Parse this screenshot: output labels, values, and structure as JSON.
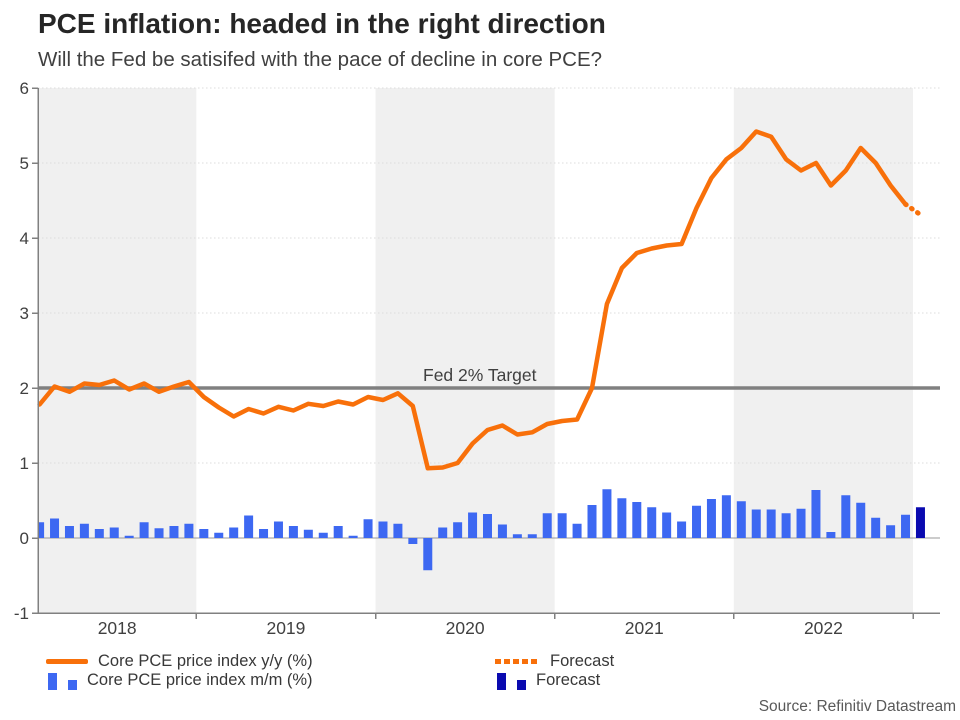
{
  "page": {
    "title": "PCE inflation: headed in the right direction",
    "subtitle": "Will the Fed be satisifed with the pace of decline in core PCE?",
    "source": "Source: Refinitiv Datastream"
  },
  "legend": {
    "yoy_label": "Core PCE price index y/y (%)",
    "mm_label": "Core PCE price index m/m (%)",
    "forecast_line_label": "Forecast",
    "forecast_bar_label": "Forecast"
  },
  "colors": {
    "yoy_line": "#F8700A",
    "mm_bar": "#3D68F2",
    "forecast_bar": "#0A0AB0",
    "target_line": "#808080",
    "band_fill": "#F0F0F0",
    "grid": "#DCDCDC",
    "zero_line": "#999999",
    "axis": "#808080",
    "tick_text": "#404040",
    "title_text": "#262626",
    "source_text": "#595959"
  },
  "chart_data": {
    "type": "line+bar",
    "title": "PCE inflation: headed in the right direction",
    "subtitle": "Will the Fed be satisifed with the pace of decline in core PCE?",
    "ylim": [
      -1,
      6
    ],
    "yticks": [
      6,
      5,
      4,
      3,
      2,
      1,
      0,
      -1
    ],
    "x_year_labels": [
      "2018",
      "2019",
      "2020",
      "2021",
      "2022"
    ],
    "shaded_years": [
      "2018",
      "2020",
      "2022"
    ],
    "grid": "dotted horizontal",
    "legend_position": "bottom",
    "target": {
      "value": 2,
      "label": "Fed 2% Target"
    },
    "months": [
      "2018-02",
      "2018-03",
      "2018-04",
      "2018-05",
      "2018-06",
      "2018-07",
      "2018-08",
      "2018-09",
      "2018-10",
      "2018-11",
      "2018-12",
      "2019-01",
      "2019-02",
      "2019-03",
      "2019-04",
      "2019-05",
      "2019-06",
      "2019-07",
      "2019-08",
      "2019-09",
      "2019-10",
      "2019-11",
      "2019-12",
      "2020-01",
      "2020-02",
      "2020-03",
      "2020-04",
      "2020-05",
      "2020-06",
      "2020-07",
      "2020-08",
      "2020-09",
      "2020-10",
      "2020-11",
      "2020-12",
      "2021-01",
      "2021-02",
      "2021-03",
      "2021-04",
      "2021-05",
      "2021-06",
      "2021-07",
      "2021-08",
      "2021-09",
      "2021-10",
      "2021-11",
      "2021-12",
      "2022-01",
      "2022-02",
      "2022-03",
      "2022-04",
      "2022-05",
      "2022-06",
      "2022-07",
      "2022-08",
      "2022-09",
      "2022-10",
      "2022-11",
      "2022-12"
    ],
    "series": [
      {
        "name": "Core PCE price index y/y (%)",
        "type": "line",
        "values": [
          1.78,
          2.02,
          1.95,
          2.06,
          2.04,
          2.1,
          1.98,
          2.06,
          1.95,
          2.02,
          2.08,
          1.88,
          1.74,
          1.62,
          1.72,
          1.66,
          1.75,
          1.7,
          1.79,
          1.76,
          1.82,
          1.78,
          1.88,
          1.84,
          1.93,
          1.76,
          0.93,
          0.94,
          1.0,
          1.26,
          1.44,
          1.5,
          1.38,
          1.41,
          1.52,
          1.56,
          1.58,
          2.0,
          3.12,
          3.6,
          3.8,
          3.86,
          3.9,
          3.92,
          4.4,
          4.8,
          5.05,
          5.2,
          5.42,
          5.35,
          5.05,
          4.9,
          5.0,
          4.7,
          4.9,
          5.2,
          5.0,
          4.7,
          4.45
        ]
      },
      {
        "name": "Core PCE price index m/m (%)",
        "type": "bar",
        "values": [
          0.21,
          0.26,
          0.16,
          0.19,
          0.12,
          0.14,
          0.03,
          0.21,
          0.13,
          0.16,
          0.19,
          0.12,
          0.07,
          0.14,
          0.3,
          0.12,
          0.22,
          0.16,
          0.11,
          0.07,
          0.16,
          0.03,
          0.25,
          0.22,
          0.19,
          -0.08,
          -0.43,
          0.14,
          0.21,
          0.34,
          0.32,
          0.18,
          0.05,
          0.05,
          0.33,
          0.33,
          0.19,
          0.44,
          0.65,
          0.53,
          0.48,
          0.41,
          0.34,
          0.22,
          0.43,
          0.52,
          0.57,
          0.49,
          0.38,
          0.38,
          0.33,
          0.39,
          0.64,
          0.08,
          0.57,
          0.47,
          0.27,
          0.17,
          0.31
        ]
      }
    ],
    "forecast": {
      "month": "2023-01",
      "yoy": 4.31,
      "mm": 0.41
    }
  }
}
